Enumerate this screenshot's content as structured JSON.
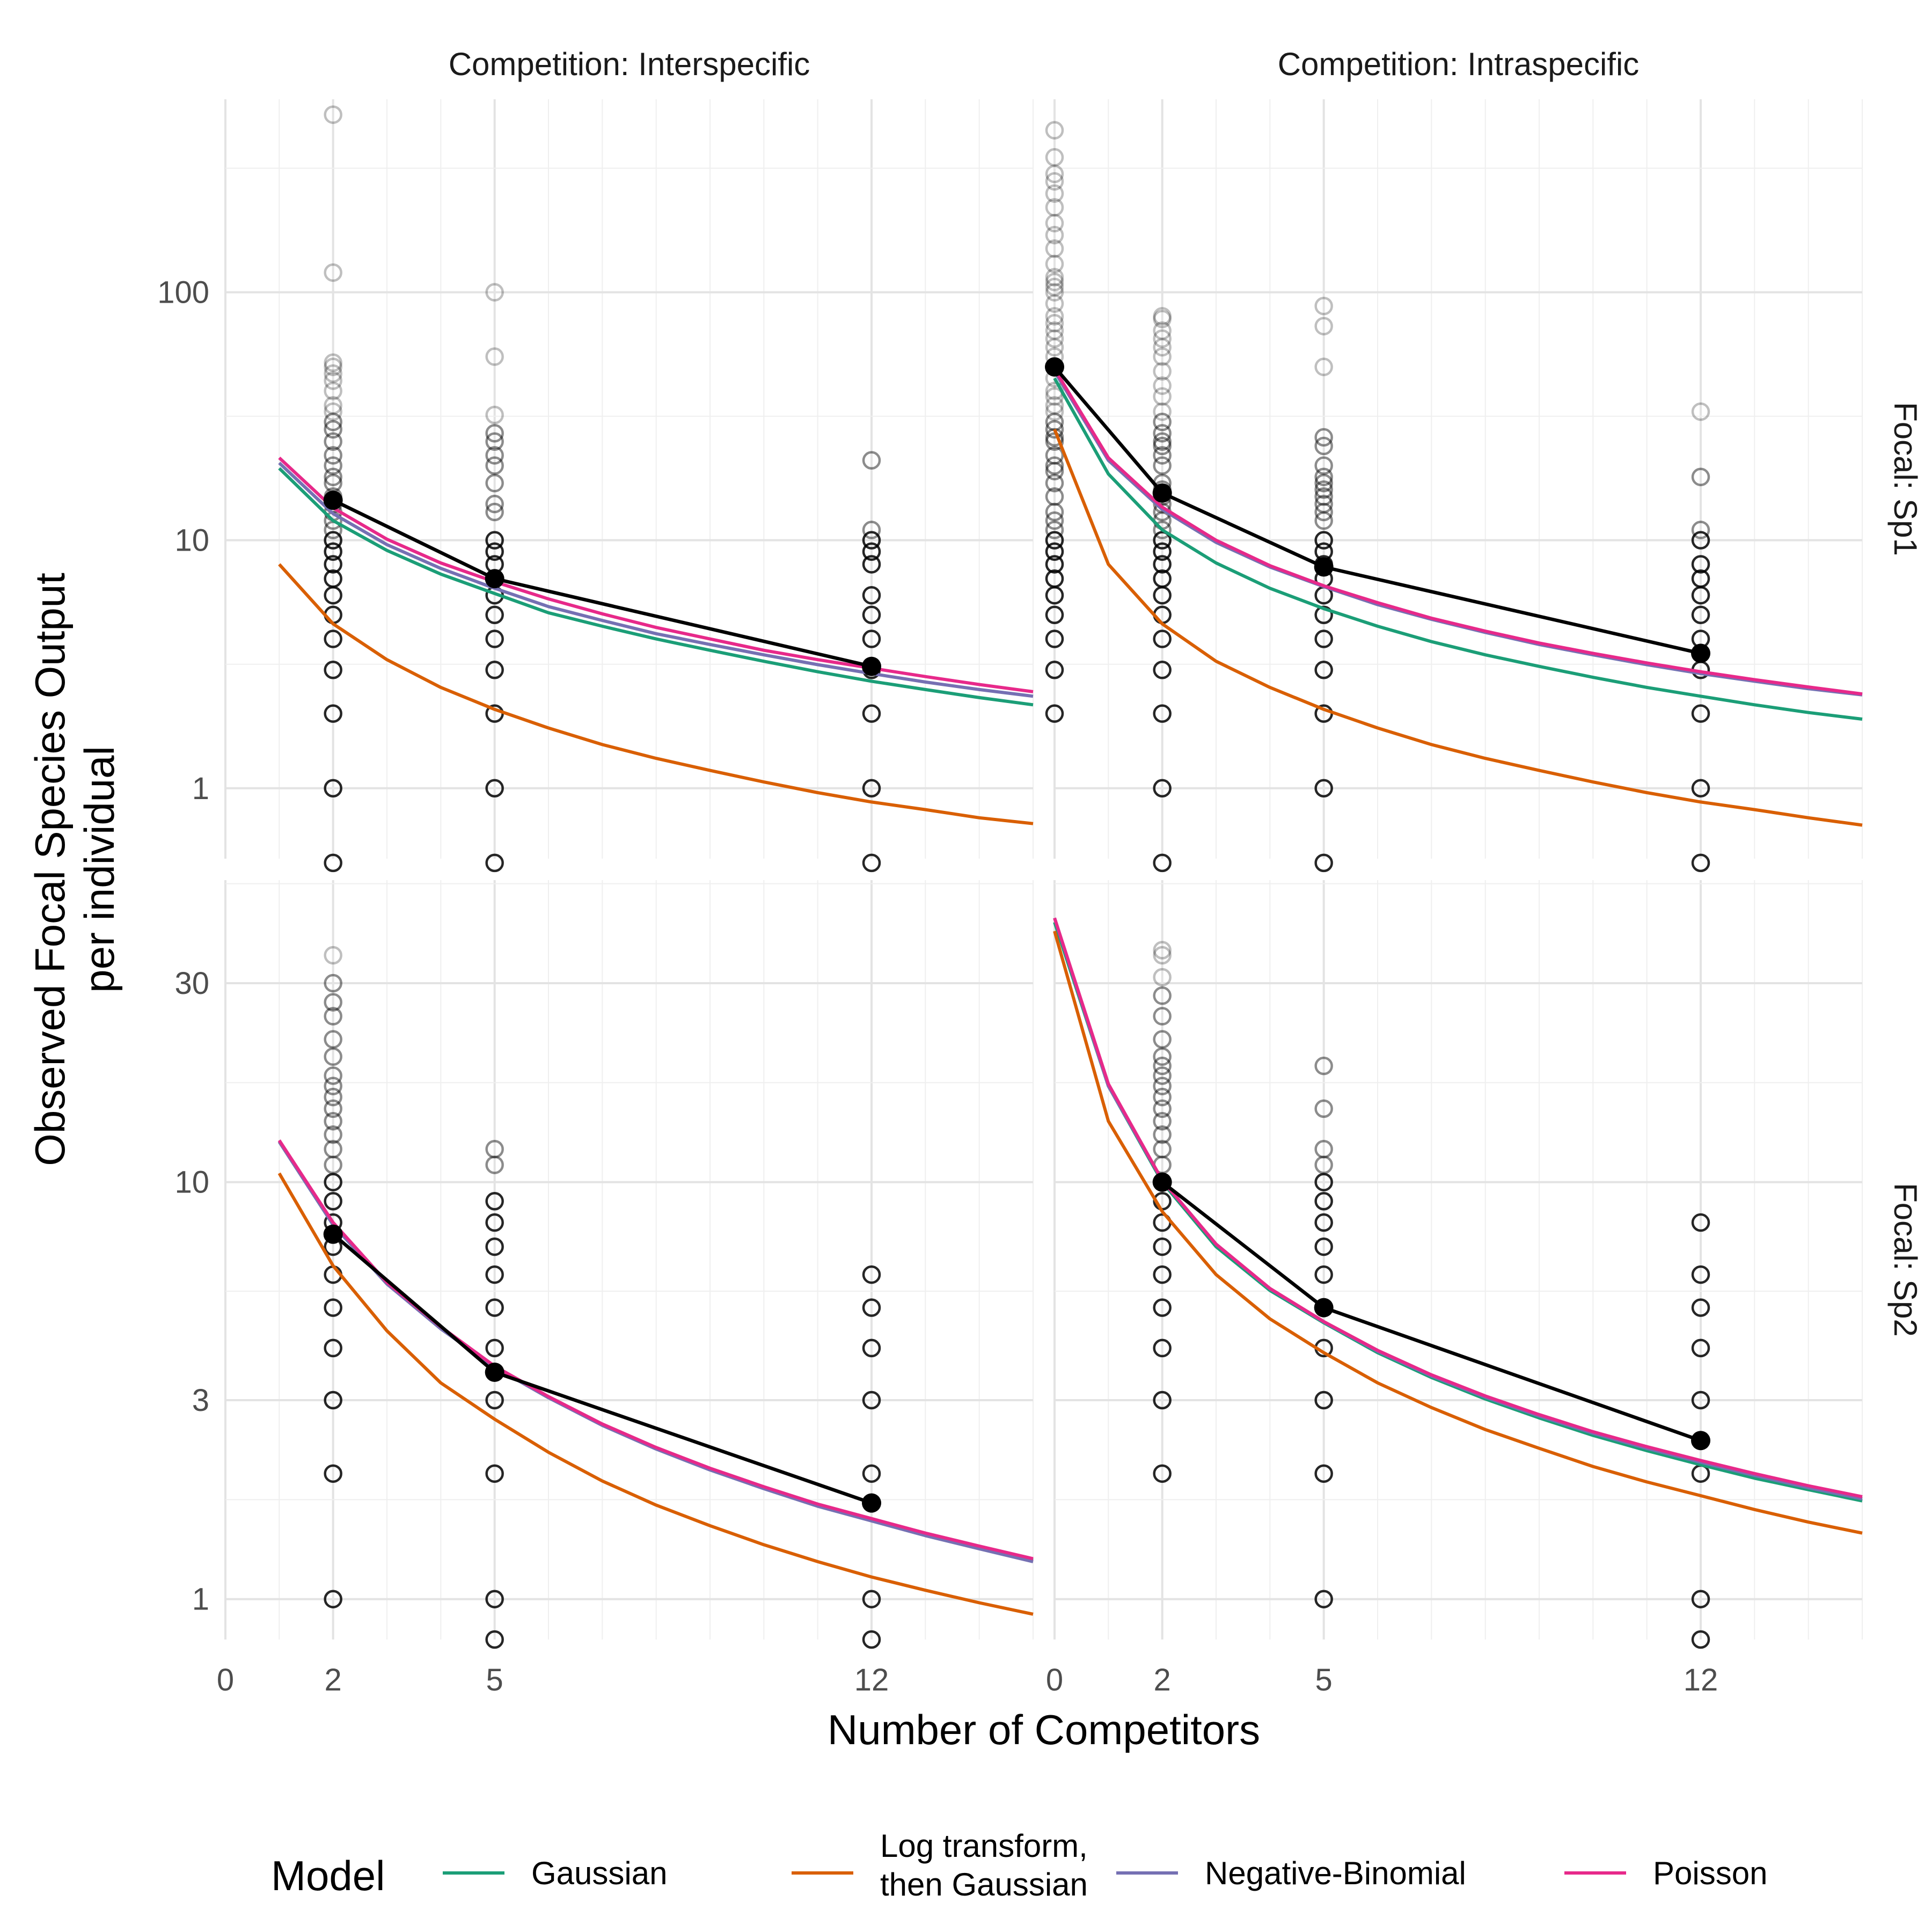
{
  "chart_data": {
    "type": "line",
    "xlabel": "Number of Competitors",
    "ylabel": [
      "Observed Focal Species Output",
      "per individual"
    ],
    "yscale": "log",
    "grid": true,
    "legend": {
      "title": "Model",
      "position": "bottom",
      "entries": [
        {
          "name": "Gaussian",
          "label_lines": [
            "Gaussian"
          ],
          "color": "#1b9e77"
        },
        {
          "name": "Log transform, then Gaussian",
          "label_lines": [
            "Log transform,",
            "then Gaussian"
          ],
          "color": "#d95f02"
        },
        {
          "name": "Negative-Binomial",
          "label_lines": [
            "Negative-Binomial"
          ],
          "color": "#7570b3"
        },
        {
          "name": "Poisson",
          "label_lines": [
            "Poisson"
          ],
          "color": "#e7298a"
        }
      ]
    },
    "columns": [
      "Competition: Interspecific",
      "Competition: Intraspecific"
    ],
    "rows": [
      "Focal: Sp1",
      "Focal: Sp2"
    ],
    "x_ticks": [
      [
        0,
        2,
        5,
        12
      ],
      [
        0,
        2,
        5,
        12
      ]
    ],
    "y_ticks": [
      [
        1,
        10,
        100
      ],
      [
        1,
        3,
        10,
        30
      ]
    ],
    "panels": [
      {
        "column": "Competition: Interspecific",
        "row": "Focal: Sp1",
        "xlim": [
          0,
          15
        ],
        "ylim": [
          0.52,
          600
        ],
        "points": {
          "2": [
            0.5,
            1,
            2,
            3,
            4,
            5,
            6,
            7,
            8,
            9,
            10,
            11,
            12,
            13,
            14,
            15,
            17,
            18,
            20,
            22,
            25,
            28,
            30,
            33,
            35,
            40,
            44,
            47,
            50,
            52,
            120,
            520
          ],
          "5": [
            0.5,
            1,
            2,
            3,
            4,
            5,
            6,
            7,
            8,
            9,
            10,
            13,
            14,
            17,
            20,
            22,
            25,
            27,
            32,
            55,
            100
          ],
          "12": [
            0.5,
            1,
            2,
            3,
            4,
            5,
            6,
            8,
            9,
            10,
            11,
            21
          ]
        },
        "means": {
          "x": [
            2,
            5,
            12
          ],
          "y": [
            14.5,
            7,
            3.1
          ]
        },
        "series": [
          {
            "name": "Gaussian",
            "x": [
              1,
              2,
              3,
              4,
              5,
              6,
              7,
              8,
              9,
              10,
              11,
              12,
              13,
              14,
              15
            ],
            "y": [
              19.5,
              12.0,
              9.1,
              7.3,
              6.1,
              5.1,
              4.5,
              4.0,
              3.6,
              3.25,
              2.95,
              2.7,
              2.5,
              2.32,
              2.17
            ]
          },
          {
            "name": "Log transform, then Gaussian",
            "x": [
              1,
              2,
              3,
              4,
              5,
              6,
              7,
              8,
              9,
              10,
              11,
              12,
              13,
              14,
              15
            ],
            "y": [
              8.0,
              4.6,
              3.3,
              2.55,
              2.08,
              1.75,
              1.5,
              1.32,
              1.18,
              1.06,
              0.96,
              0.88,
              0.82,
              0.76,
              0.72
            ]
          },
          {
            "name": "Negative-Binomial",
            "x": [
              1,
              2,
              3,
              4,
              5,
              6,
              7,
              8,
              9,
              10,
              11,
              12,
              13,
              14,
              15
            ],
            "y": [
              20.5,
              12.8,
              9.6,
              7.7,
              6.4,
              5.4,
              4.75,
              4.2,
              3.8,
              3.45,
              3.15,
              2.9,
              2.68,
              2.5,
              2.35
            ]
          },
          {
            "name": "Poisson",
            "x": [
              1,
              2,
              3,
              4,
              5,
              6,
              7,
              8,
              9,
              10,
              11,
              12,
              13,
              14,
              15
            ],
            "y": [
              21.5,
              13.5,
              10.1,
              8.1,
              6.8,
              5.8,
              5.05,
              4.45,
              4.0,
              3.6,
              3.3,
              3.05,
              2.82,
              2.62,
              2.45
            ]
          }
        ]
      },
      {
        "column": "Competition: Intraspecific",
        "row": "Focal: Sp1",
        "xlim": [
          0,
          15
        ],
        "ylim": [
          0.52,
          600
        ],
        "points": {
          "0": [
            2,
            3,
            4,
            5,
            6,
            7,
            8,
            9,
            10,
            11,
            12,
            13,
            15,
            17,
            19,
            20,
            22,
            25,
            26,
            28,
            30,
            33,
            35,
            38,
            40,
            45,
            50,
            55,
            60,
            65,
            70,
            75,
            80,
            90,
            100,
            105,
            110,
            115,
            130,
            150,
            170,
            190,
            220,
            250,
            280,
            300,
            350,
            450
          ],
          "2": [
            0.5,
            1,
            2,
            3,
            4,
            5,
            6,
            7,
            8,
            9,
            10,
            11,
            12,
            13,
            14,
            15,
            16,
            17,
            20,
            22,
            24,
            25,
            27,
            30,
            33,
            38,
            42,
            48,
            55,
            60,
            65,
            70,
            78,
            80
          ],
          "5": [
            0.5,
            1,
            2,
            3,
            4,
            5,
            6,
            7,
            8,
            9,
            10,
            12,
            13,
            14,
            15,
            16,
            17,
            18,
            20,
            24,
            26,
            50,
            73,
            88
          ],
          "12": [
            0.5,
            1,
            2,
            3,
            4,
            5,
            6,
            7,
            8,
            10,
            11,
            18,
            33
          ]
        },
        "means": {
          "x": [
            0,
            2,
            5,
            12
          ],
          "y": [
            50,
            15.5,
            7.8,
            3.5
          ]
        },
        "series": [
          {
            "name": "Gaussian",
            "x": [
              0,
              1,
              2,
              3,
              4,
              5,
              6,
              7,
              8,
              9,
              10,
              11,
              12,
              13,
              14,
              15
            ],
            "y": [
              45,
              18.5,
              11.0,
              8.1,
              6.4,
              5.3,
              4.5,
              3.9,
              3.45,
              3.1,
              2.8,
              2.55,
              2.35,
              2.17,
              2.02,
              1.9
            ]
          },
          {
            "name": "Log transform, then Gaussian",
            "x": [
              0,
              1,
              2,
              3,
              4,
              5,
              6,
              7,
              8,
              9,
              10,
              11,
              12,
              13,
              14,
              15
            ],
            "y": [
              28,
              8.0,
              4.6,
              3.25,
              2.55,
              2.08,
              1.75,
              1.5,
              1.32,
              1.18,
              1.06,
              0.96,
              0.88,
              0.82,
              0.76,
              0.71
            ]
          },
          {
            "name": "Negative-Binomial",
            "x": [
              0,
              1,
              2,
              3,
              4,
              5,
              6,
              7,
              8,
              9,
              10,
              11,
              12,
              13,
              14,
              15
            ],
            "y": [
              48,
              21,
              13.3,
              9.8,
              7.8,
              6.5,
              5.5,
              4.8,
              4.25,
              3.8,
              3.45,
              3.15,
              2.9,
              2.7,
              2.52,
              2.38
            ]
          },
          {
            "name": "Poisson",
            "x": [
              0,
              1,
              2,
              3,
              4,
              5,
              6,
              7,
              8,
              9,
              10,
              11,
              12,
              13,
              14,
              15
            ],
            "y": [
              49,
              21.5,
              13.6,
              10.0,
              7.9,
              6.55,
              5.6,
              4.85,
              4.3,
              3.85,
              3.5,
              3.2,
              2.95,
              2.74,
              2.56,
              2.4
            ]
          }
        ]
      },
      {
        "column": "Competition: Interspecific",
        "row": "Focal: Sp2",
        "xlim": [
          0,
          15
        ],
        "ylim": [
          0.8,
          53
        ],
        "points": {
          "2": [
            1,
            2,
            3,
            4,
            5,
            6,
            7,
            8,
            9,
            10,
            11,
            12,
            13,
            14,
            15,
            16,
            17,
            18,
            20,
            22,
            25,
            27,
            30,
            35
          ],
          "5": [
            0.8,
            1,
            2,
            3,
            4,
            5,
            6,
            7,
            8,
            9,
            11,
            12
          ],
          "12": [
            0.8,
            1,
            1.7,
            2,
            3,
            4,
            5,
            6
          ]
        },
        "means": {
          "x": [
            2,
            5,
            12
          ],
          "y": [
            7.5,
            3.5,
            1.7
          ]
        },
        "series": [
          {
            "name": "Gaussian",
            "x": [
              1,
              2,
              3,
              4,
              5,
              6,
              7,
              8,
              9,
              10,
              11,
              12,
              13,
              14,
              15
            ],
            "y": [
              12.5,
              7.9,
              5.7,
              4.5,
              3.6,
              3.05,
              2.62,
              2.3,
              2.05,
              1.85,
              1.68,
              1.55,
              1.43,
              1.33,
              1.24
            ]
          },
          {
            "name": "Log transform, then Gaussian",
            "x": [
              1,
              2,
              3,
              4,
              5,
              6,
              7,
              8,
              9,
              10,
              11,
              12,
              13,
              14,
              15
            ],
            "y": [
              10.5,
              6.3,
              4.4,
              3.3,
              2.7,
              2.25,
              1.92,
              1.68,
              1.5,
              1.35,
              1.23,
              1.13,
              1.05,
              0.98,
              0.92
            ]
          },
          {
            "name": "Negative-Binomial",
            "x": [
              1,
              2,
              3,
              4,
              5,
              6,
              7,
              8,
              9,
              10,
              11,
              12,
              13,
              14,
              15
            ],
            "y": [
              12.5,
              7.9,
              5.7,
              4.45,
              3.6,
              3.04,
              2.61,
              2.29,
              2.04,
              1.84,
              1.67,
              1.54,
              1.42,
              1.32,
              1.23
            ]
          },
          {
            "name": "Poisson",
            "x": [
              1,
              2,
              3,
              4,
              5,
              6,
              7,
              8,
              9,
              10,
              11,
              12,
              13,
              14,
              15
            ],
            "y": [
              12.6,
              8.0,
              5.75,
              4.5,
              3.62,
              3.06,
              2.63,
              2.31,
              2.06,
              1.86,
              1.69,
              1.56,
              1.44,
              1.34,
              1.25
            ]
          }
        ]
      },
      {
        "column": "Competition: Intraspecific",
        "row": "Focal: Sp2",
        "xlim": [
          0,
          15
        ],
        "ylim": [
          0.8,
          53
        ],
        "points": {
          "2": [
            2,
            3,
            4,
            5,
            6,
            7,
            8,
            9,
            10,
            11,
            12,
            13,
            14,
            15,
            16,
            17,
            18,
            19,
            20,
            22,
            25,
            28,
            31,
            35,
            36
          ],
          "5": [
            1,
            2,
            3,
            4,
            5,
            6,
            7,
            8,
            9,
            10,
            11,
            12,
            15,
            19
          ],
          "12": [
            0.8,
            1,
            2,
            3,
            4,
            5,
            6,
            8
          ]
        },
        "means": {
          "x": [
            2,
            5,
            12
          ],
          "y": [
            10,
            5,
            2.4
          ]
        },
        "series": [
          {
            "name": "Gaussian",
            "x": [
              0,
              1,
              2,
              3,
              4,
              5,
              6,
              7,
              8,
              9,
              10,
              11,
              12,
              13,
              14,
              15
            ],
            "y": [
              42,
              17,
              10.0,
              7.0,
              5.5,
              4.6,
              3.9,
              3.4,
              3.02,
              2.72,
              2.47,
              2.27,
              2.1,
              1.95,
              1.83,
              1.72
            ]
          },
          {
            "name": "Log transform, then Gaussian",
            "x": [
              0,
              1,
              2,
              3,
              4,
              5,
              6,
              7,
              8,
              9,
              10,
              11,
              12,
              13,
              14,
              15
            ],
            "y": [
              40,
              14,
              8.5,
              6.0,
              4.7,
              3.9,
              3.3,
              2.88,
              2.55,
              2.3,
              2.08,
              1.91,
              1.77,
              1.64,
              1.53,
              1.44
            ]
          },
          {
            "name": "Negative-Binomial",
            "x": [
              0,
              1,
              2,
              3,
              4,
              5,
              6,
              7,
              8,
              9,
              10,
              11,
              12,
              13,
              14,
              15
            ],
            "y": [
              43,
              17,
              10.1,
              7.1,
              5.55,
              4.62,
              3.93,
              3.43,
              3.05,
              2.75,
              2.5,
              2.3,
              2.13,
              1.98,
              1.85,
              1.74
            ]
          },
          {
            "name": "Poisson",
            "x": [
              0,
              1,
              2,
              3,
              4,
              5,
              6,
              7,
              8,
              9,
              10,
              11,
              12,
              13,
              14,
              15
            ],
            "y": [
              43,
              17.2,
              10.1,
              7.1,
              5.56,
              4.63,
              3.95,
              3.45,
              3.07,
              2.77,
              2.52,
              2.32,
              2.15,
              2.0,
              1.87,
              1.76
            ]
          }
        ]
      }
    ]
  }
}
